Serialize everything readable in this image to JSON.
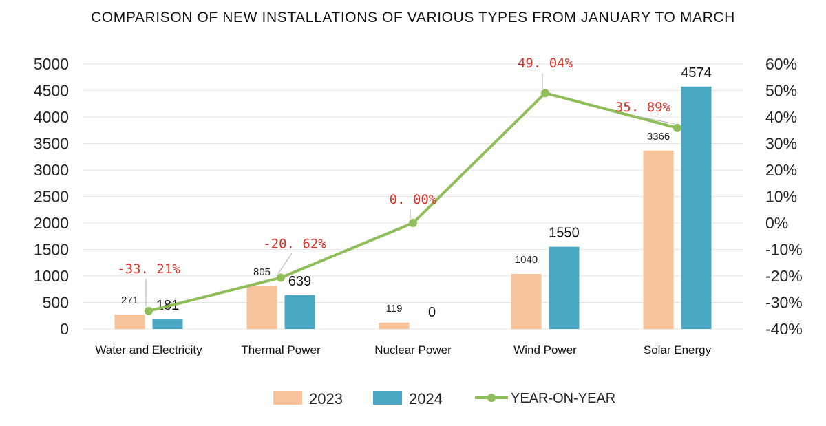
{
  "chart_data": {
    "type": "bar",
    "title": "COMPARISON OF NEW INSTALLATIONS OF VARIOUS TYPES FROM JANUARY TO MARCH",
    "categories": [
      "Water and Electricity",
      "Thermal Power",
      "Nuclear Power",
      "Wind Power",
      "Solar Energy"
    ],
    "series": [
      {
        "name": "2023",
        "type": "bar",
        "axis": "left",
        "color": "#f8c39a",
        "values": [
          271,
          805,
          119,
          1040,
          3366
        ],
        "labels": [
          "271",
          "805",
          "119",
          "1040",
          "3366"
        ]
      },
      {
        "name": "2024",
        "type": "bar",
        "axis": "left",
        "color": "#4aa7c4",
        "values": [
          181,
          639,
          0,
          1550,
          4574
        ],
        "labels": [
          "181",
          "639",
          "0",
          "1550",
          "4574"
        ]
      },
      {
        "name": "YEAR-ON-YEAR",
        "type": "line",
        "axis": "right",
        "color": "#8ebd5a",
        "values": [
          -33.21,
          -20.62,
          0.0,
          49.04,
          35.89
        ],
        "labels": [
          "-33. 21%",
          "-20. 62%",
          "0. 00%",
          "49. 04%",
          "35. 89%"
        ]
      }
    ],
    "y_left": {
      "min": 0,
      "max": 5000,
      "step": 500,
      "ticks": [
        "0",
        "500",
        "1000",
        "1500",
        "2000",
        "2500",
        "3000",
        "3500",
        "4000",
        "4500",
        "5000"
      ]
    },
    "y_right": {
      "min": -40,
      "max": 60,
      "step": 10,
      "ticks": [
        "-40%",
        "-30%",
        "-20%",
        "-10%",
        "0%",
        "10%",
        "20%",
        "30%",
        "40%",
        "50%",
        "60%"
      ]
    },
    "grid": true,
    "legend": "bottom-center",
    "label_color": "#d93025"
  }
}
